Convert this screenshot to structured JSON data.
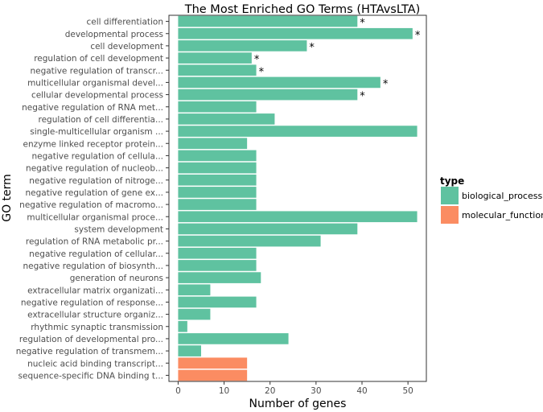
{
  "chart_data": {
    "type": "bar",
    "orientation": "horizontal",
    "title": "The Most Enriched GO Terms",
    "title_suffix": "(HTAvsLTA)",
    "xlabel": "Number of genes",
    "ylabel": "GO term",
    "xlim": [
      -2,
      54
    ],
    "xticks": [
      0,
      10,
      20,
      30,
      40,
      50
    ],
    "grid": false,
    "legend": {
      "title": "type",
      "placement": "right",
      "entries": [
        {
          "label": "biological_process",
          "color": "#5fc2a0"
        },
        {
          "label": "molecular_function",
          "color": "#fb8c62"
        }
      ]
    },
    "bars": [
      {
        "term": "cell differentiation",
        "value": 39,
        "type": "biological_process",
        "star": "*"
      },
      {
        "term": "developmental process",
        "value": 51,
        "type": "biological_process",
        "star": "*"
      },
      {
        "term": "cell development",
        "value": 28,
        "type": "biological_process",
        "star": "*"
      },
      {
        "term": "regulation of cell development",
        "value": 16,
        "type": "biological_process",
        "star": "*"
      },
      {
        "term": "negative regulation of transcr...",
        "value": 17,
        "type": "biological_process",
        "star": "*"
      },
      {
        "term": "multicellular organismal devel...",
        "value": 44,
        "type": "biological_process",
        "star": "*"
      },
      {
        "term": "cellular developmental process",
        "value": 39,
        "type": "biological_process",
        "star": "*"
      },
      {
        "term": "negative regulation of RNA met...",
        "value": 17,
        "type": "biological_process",
        "star": ""
      },
      {
        "term": "regulation of cell differentia...",
        "value": 21,
        "type": "biological_process",
        "star": ""
      },
      {
        "term": "single-multicellular organism ...",
        "value": 52,
        "type": "biological_process",
        "star": ""
      },
      {
        "term": "enzyme linked receptor protein...",
        "value": 15,
        "type": "biological_process",
        "star": ""
      },
      {
        "term": "negative regulation of cellula...",
        "value": 17,
        "type": "biological_process",
        "star": ""
      },
      {
        "term": "negative regulation of nucleob...",
        "value": 17,
        "type": "biological_process",
        "star": ""
      },
      {
        "term": "negative regulation of nitroge...",
        "value": 17,
        "type": "biological_process",
        "star": ""
      },
      {
        "term": "negative regulation of gene ex...",
        "value": 17,
        "type": "biological_process",
        "star": ""
      },
      {
        "term": "negative regulation of macromo...",
        "value": 17,
        "type": "biological_process",
        "star": ""
      },
      {
        "term": "multicellular organismal proce...",
        "value": 52,
        "type": "biological_process",
        "star": ""
      },
      {
        "term": "system development",
        "value": 39,
        "type": "biological_process",
        "star": ""
      },
      {
        "term": "regulation of RNA metabolic pr...",
        "value": 31,
        "type": "biological_process",
        "star": ""
      },
      {
        "term": "negative regulation of cellular...",
        "value": 17,
        "type": "biological_process",
        "star": ""
      },
      {
        "term": "negative regulation of biosynth...",
        "value": 17,
        "type": "biological_process",
        "star": ""
      },
      {
        "term": "generation of neurons",
        "value": 18,
        "type": "biological_process",
        "star": ""
      },
      {
        "term": "extracellular matrix organizati...",
        "value": 7,
        "type": "biological_process",
        "star": ""
      },
      {
        "term": "negative regulation of response...",
        "value": 17,
        "type": "biological_process",
        "star": ""
      },
      {
        "term": "extracellular structure organiz...",
        "value": 7,
        "type": "biological_process",
        "star": ""
      },
      {
        "term": "rhythmic synaptic transmission",
        "value": 2,
        "type": "biological_process",
        "star": ""
      },
      {
        "term": "regulation of developmental pro...",
        "value": 24,
        "type": "biological_process",
        "star": ""
      },
      {
        "term": "negative regulation of transmem...",
        "value": 5,
        "type": "biological_process",
        "star": ""
      },
      {
        "term": "nucleic acid binding transcript...",
        "value": 15,
        "type": "molecular_function",
        "star": ""
      },
      {
        "term": "sequence-specific DNA binding t...",
        "value": 15,
        "type": "molecular_function",
        "star": ""
      }
    ]
  }
}
